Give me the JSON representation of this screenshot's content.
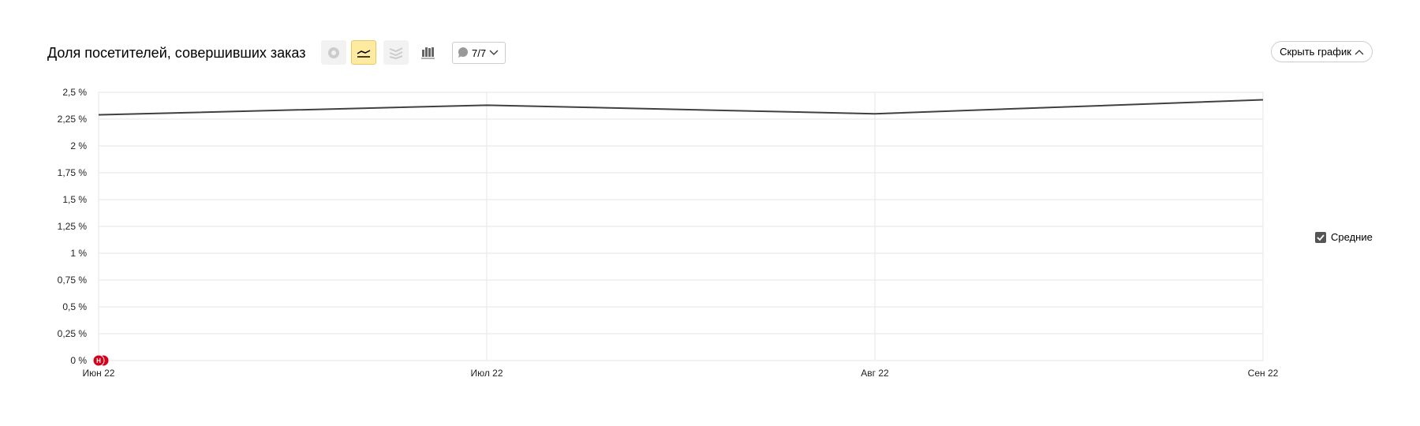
{
  "header": {
    "title": "Доля посетителей, совершивших заказ",
    "view_buttons": [
      {
        "icon": "pie-chart-icon",
        "active": false
      },
      {
        "icon": "line-chart-icon",
        "active": true
      },
      {
        "icon": "area-chart-icon",
        "active": false
      },
      {
        "icon": "bar-chart-icon",
        "active": false
      }
    ],
    "annotations_dropdown": {
      "icon": "comment-icon",
      "label": "7/7"
    },
    "hide_button": "Скрыть график"
  },
  "legend": {
    "label": "Средние",
    "checked": true
  },
  "colors": {
    "line": "#404040",
    "grid": "#e6e6e6",
    "annotation": "#d4001c",
    "active_button": "#ffeba0"
  },
  "chart_data": {
    "type": "line",
    "categories": [
      "Июн 22",
      "Июл 22",
      "Авг 22",
      "Сен 22"
    ],
    "series": [
      {
        "name": "Средние",
        "values": [
          2.29,
          2.38,
          2.3,
          2.43
        ]
      }
    ],
    "yticks": [
      "0 %",
      "0,25 %",
      "0,5 %",
      "0,75 %",
      "1 %",
      "1,25 %",
      "1,5 %",
      "1,75 %",
      "2 %",
      "2,25 %",
      "2,5 %"
    ],
    "ylim": [
      0,
      2.5
    ],
    "grid": true,
    "legend_position": "right",
    "annotation_marker": {
      "category": "Июн 22",
      "label": "Н"
    }
  }
}
